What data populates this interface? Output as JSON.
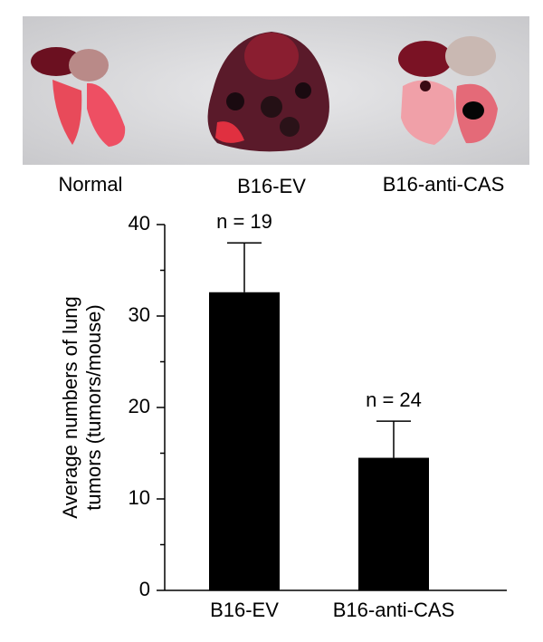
{
  "photo": {
    "labels": [
      "Normal",
      "B16-EV",
      "B16-anti-CAS"
    ]
  },
  "chart_data": {
    "type": "bar",
    "ylabel": [
      "Average numbers of lung",
      "tumors (tumors/mouse)"
    ],
    "categories": [
      "B16-EV",
      "B16-anti-CAS"
    ],
    "values": [
      32.6,
      14.5
    ],
    "errors": [
      5.4,
      4.0
    ],
    "annotations": [
      "n = 19",
      "n = 24"
    ],
    "color": "#000000",
    "ylim": [
      0,
      40
    ],
    "yticks": [
      0,
      10,
      20,
      30,
      40
    ],
    "minor_yticks": [
      5,
      15,
      25,
      35
    ]
  }
}
